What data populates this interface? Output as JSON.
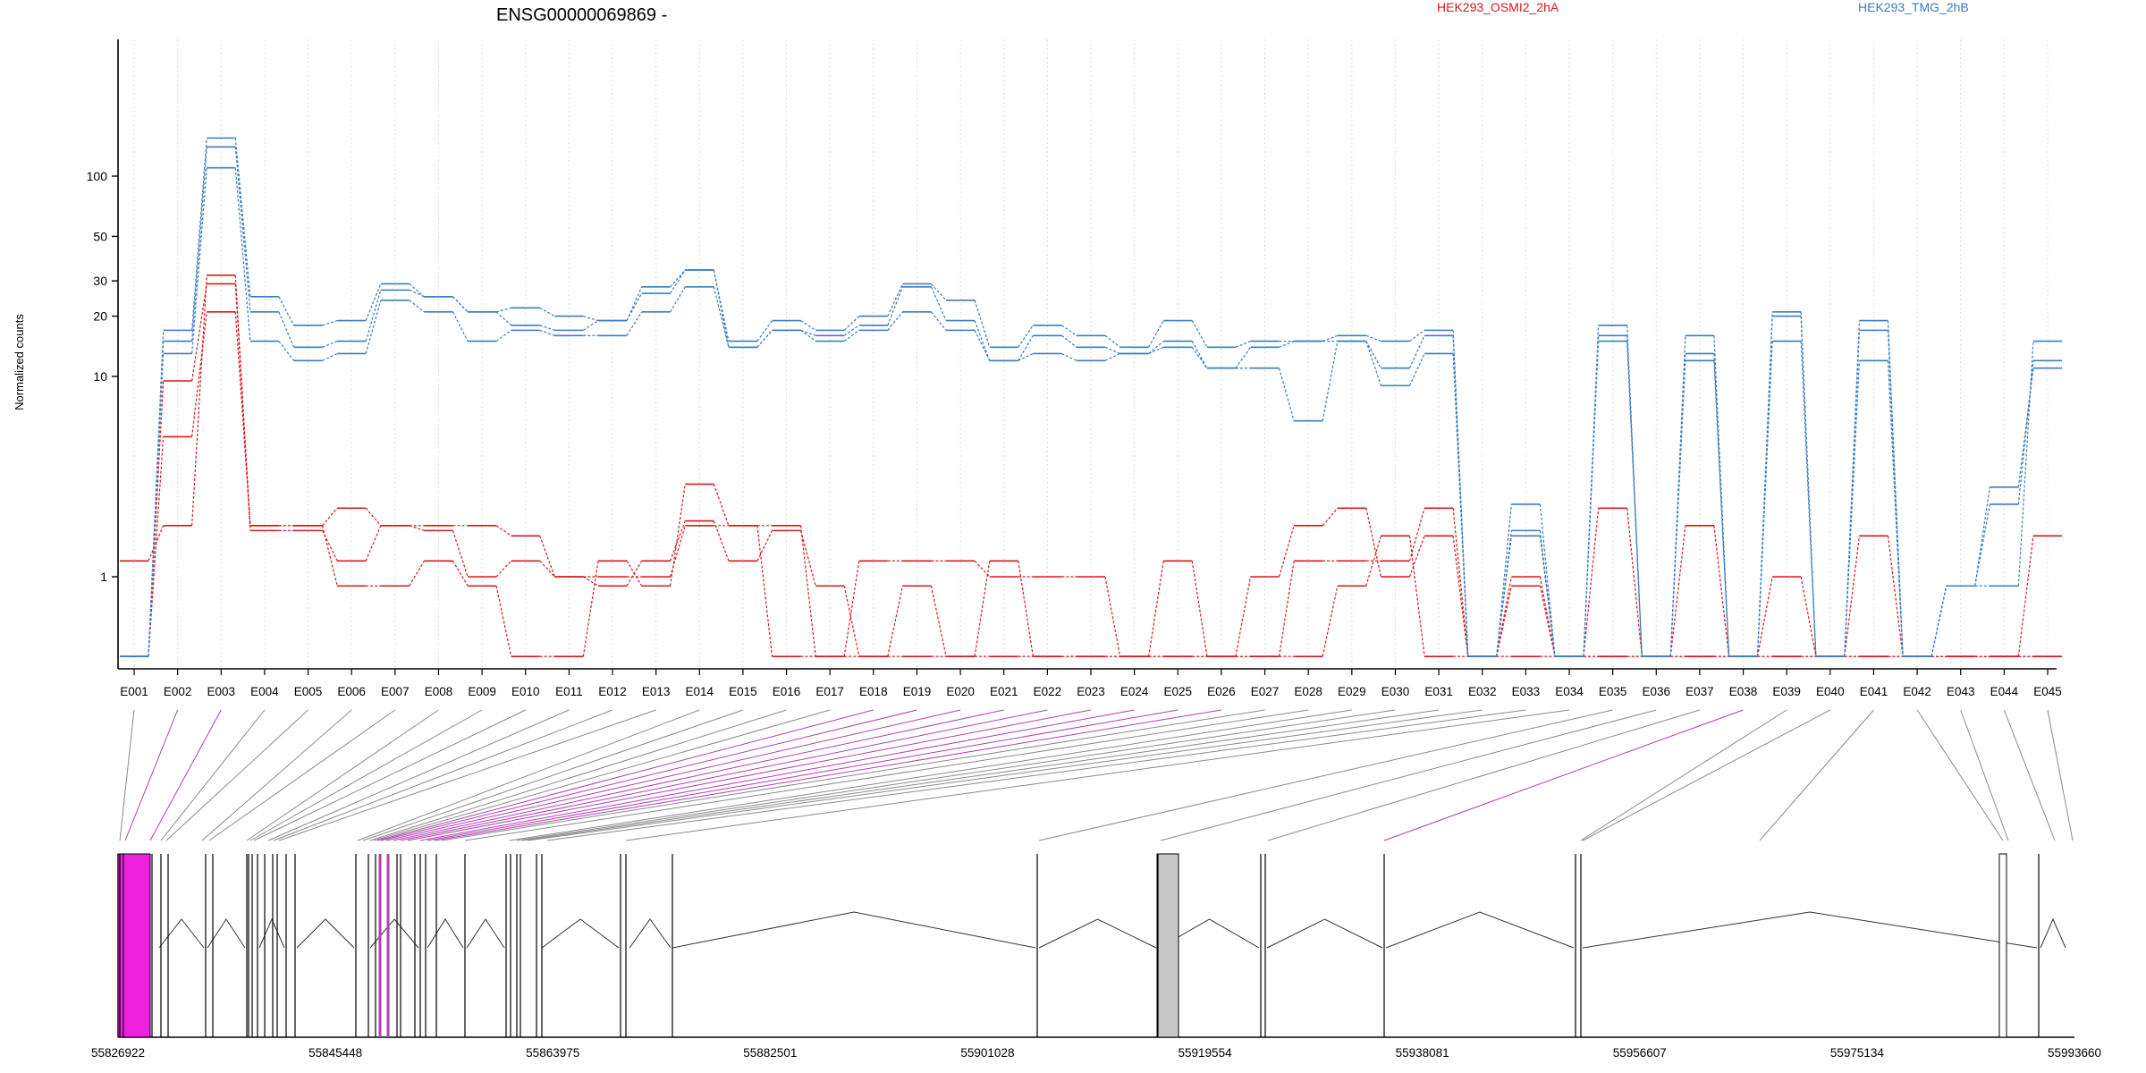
{
  "chart_data": [
    {
      "type": "line",
      "title": "ENSG00000069869 -",
      "ylabel": "Normalized counts",
      "yscale": "log",
      "ylim": [
        0.4,
        200
      ],
      "yticks": [
        1,
        10,
        20,
        30,
        50,
        100
      ],
      "grid": "vertical dotted, one per exon",
      "legend_placement": "top-right",
      "categories": [
        "E001",
        "E002",
        "E003",
        "E004",
        "E005",
        "E006",
        "E007",
        "E008",
        "E009",
        "E010",
        "E011",
        "E012",
        "E013",
        "E014",
        "E015",
        "E016",
        "E017",
        "E018",
        "E019",
        "E020",
        "E021",
        "E022",
        "E023",
        "E024",
        "E025",
        "E026",
        "E027",
        "E028",
        "E029",
        "E030",
        "E031",
        "E032",
        "E033",
        "E034",
        "E035",
        "E036",
        "E037",
        "E038",
        "E039",
        "E040",
        "E041",
        "E042",
        "E043",
        "E044",
        "E045"
      ],
      "series": [
        {
          "name": "HEK293_OSMI2_2hA",
          "color": "#d7191c",
          "values": [
            1.2,
            1.8,
            32,
            1.7,
            1.7,
            1.2,
            1.8,
            1.7,
            1.0,
            1.2,
            1.0,
            0.9,
            1.2,
            1.9,
            1.2,
            1.7,
            0.9,
            0.4,
            0.9,
            0.4,
            1.2,
            0.4,
            0.4,
            0.4,
            0.4,
            0.4,
            1.0,
            1.8,
            2.2,
            1.0,
            1.6,
            0.4,
            1.0,
            0.4,
            2.2,
            0.4,
            1.8,
            0.4,
            1.0,
            0.4,
            1.6,
            0.4,
            0.4,
            0.4,
            1.6
          ]
        },
        {
          "name": "HEK293_OSMI2_2hA",
          "color": "#d7191c",
          "values": [
            0.4,
            5.0,
            21,
            1.8,
            1.8,
            2.2,
            1.8,
            1.8,
            1.8,
            1.6,
            1.0,
            1.0,
            1.0,
            1.8,
            1.8,
            1.8,
            0.4,
            1.2,
            1.2,
            1.2,
            1.0,
            1.0,
            1.0,
            0.4,
            1.2,
            0.4,
            0.4,
            1.2,
            1.2,
            1.2,
            2.2,
            0.4,
            0.9,
            0.4,
            0.4,
            0.4,
            0.4,
            0.4,
            0.4,
            0.4,
            0.4,
            0.4,
            0.4,
            0.4,
            0.4
          ]
        },
        {
          "name": "HEK293_OSMI2_2hA",
          "color": "#d7191c",
          "values": [
            0.4,
            9.5,
            29,
            1.8,
            1.8,
            0.9,
            0.9,
            1.2,
            0.9,
            0.4,
            0.4,
            1.2,
            0.9,
            2.9,
            1.8,
            0.4,
            0.4,
            0.4,
            0.4,
            0.4,
            0.4,
            0.4,
            0.4,
            0.4,
            0.4,
            0.4,
            0.4,
            0.4,
            0.9,
            1.6,
            0.4,
            0.4,
            0.4,
            0.4,
            0.4,
            0.4,
            0.4,
            0.4,
            0.4,
            0.4,
            0.4,
            0.4,
            0.4,
            0.4,
            0.4
          ]
        },
        {
          "name": "HEK293_TMG_2hB",
          "color": "#3a7dbf",
          "values": [
            0.4,
            17,
            155,
            25,
            18,
            19,
            29,
            25,
            21,
            22,
            20,
            19,
            28,
            34,
            15,
            19,
            17,
            20,
            29,
            24,
            14,
            18,
            16,
            14,
            19,
            14,
            15,
            15,
            16,
            15,
            17,
            0.4,
            2.3,
            0.4,
            18,
            0.4,
            16,
            0.4,
            21,
            0.4,
            19,
            0.4,
            0.9,
            2.8,
            11
          ]
        },
        {
          "name": "HEK293_TMG_2hB",
          "color": "#3a7dbf",
          "values": [
            0.4,
            15,
            140,
            21,
            14,
            15,
            27,
            25,
            21,
            18,
            17,
            19,
            26,
            34,
            14,
            17,
            16,
            18,
            28,
            19,
            12,
            16,
            14,
            13,
            15,
            11,
            14,
            15,
            15,
            11,
            16,
            0.4,
            1.6,
            0.4,
            16,
            0.4,
            13,
            0.4,
            20,
            0.4,
            17,
            0.4,
            0.9,
            2.3,
            12
          ]
        },
        {
          "name": "HEK293_TMG_2hB",
          "color": "#3a7dbf",
          "values": [
            0.4,
            13,
            110,
            15,
            12,
            13,
            24,
            21,
            15,
            17,
            16,
            16,
            21,
            28,
            14,
            17,
            15,
            17,
            21,
            17,
            12,
            13,
            12,
            13,
            14,
            11,
            11,
            6,
            15,
            9,
            13,
            0.4,
            1.7,
            0.4,
            15,
            0.4,
            12,
            0.4,
            15,
            0.4,
            12,
            0.4,
            0.9,
            0.9,
            15
          ]
        }
      ]
    },
    {
      "type": "gene_model",
      "xlabels": [
        "55826922",
        "55845448",
        "55863975",
        "55882501",
        "55901028",
        "55919554",
        "55938081",
        "55956607",
        "55975134",
        "55993660"
      ],
      "xlim": [
        55826922,
        55993660
      ]
    }
  ],
  "colors": {
    "series_a": "#d7191c",
    "series_b": "#3a7dbf",
    "highlight": "#f020e0",
    "highlight_line": "#b040b0",
    "connector": "#8a8a8a",
    "grey_box": "#c8c8c8"
  }
}
